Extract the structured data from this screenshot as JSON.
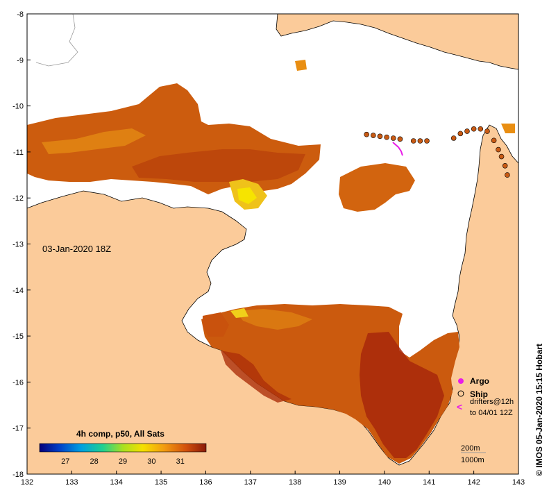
{
  "map": {
    "date_label": "03-Jan-2020 18Z",
    "credit": "© IMOS 05-Jan-2020 15:15 Hobart",
    "x_ticks": [
      "132",
      "133",
      "134",
      "135",
      "136",
      "137",
      "138",
      "139",
      "140",
      "141",
      "142",
      "143"
    ],
    "y_ticks": [
      "-8",
      "-9",
      "-10",
      "-11",
      "-12",
      "-13",
      "-14",
      "-15",
      "-16",
      "-17",
      "-18"
    ],
    "lon_range": [
      132,
      143
    ],
    "lat_range": [
      -18,
      -8
    ]
  },
  "colorbar": {
    "title": "4h comp, p50, All Sats",
    "tick_labels": [
      "27",
      "28",
      "29",
      "30",
      "31"
    ],
    "range": [
      26.1,
      31.9
    ]
  },
  "legend": {
    "argo_label": "Argo",
    "ship_label": "Ship",
    "drifters_label": "drifters@12h",
    "drifters_label2": "to 04/01 12Z",
    "depth_label_1": "200m",
    "depth_label_2": "1000m"
  },
  "colors": {
    "land": "#fbcb9a",
    "sea_missing": "#ffffff",
    "argo": "#e81ce8",
    "ship_fill": "#c85a14",
    "warm_deep": "#a3240a",
    "warm_mid": "#cc4d0d",
    "warm_light": "#e47a10",
    "yellow": "#f5e000"
  }
}
